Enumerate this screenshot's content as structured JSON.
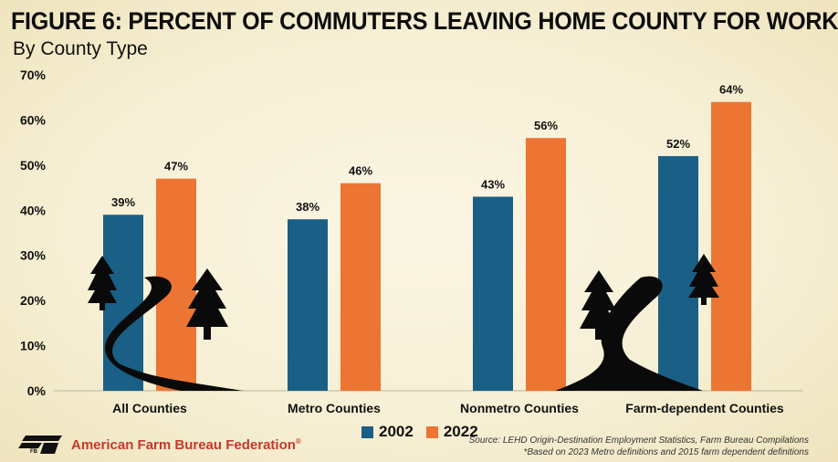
{
  "header": {
    "title": "FIGURE 6: PERCENT OF COMMUTERS LEAVING HOME COUNTY FOR WORK",
    "subtitle": "By County Type"
  },
  "chart_data": {
    "type": "bar",
    "categories": [
      "All Counties",
      "Metro Counties",
      "Nonmetro Counties",
      "Farm-dependent Counties"
    ],
    "series": [
      {
        "name": "2002",
        "color": "#1a5f85",
        "values": [
          39,
          38,
          43,
          52
        ],
        "labels": [
          "39%",
          "38%",
          "43%",
          "52%"
        ]
      },
      {
        "name": "2022",
        "color": "#ec7533",
        "values": [
          47,
          46,
          56,
          64
        ],
        "labels": [
          "47%",
          "46%",
          "56%",
          "64%"
        ]
      }
    ],
    "ylim": [
      0,
      70
    ],
    "yticks": [
      "0%",
      "10%",
      "20%",
      "30%",
      "40%",
      "50%",
      "60%",
      "70%"
    ],
    "grid": false,
    "legend_position": "bottom-center"
  },
  "footer": {
    "brand": "American Farm Bureau Federation",
    "brand_mark": "FB",
    "brand_trademark": "®",
    "source_line1": "Source: LEHD Origin-Destination Employment Statistics, Farm Bureau Compilations",
    "source_line2": "*Based on 2023 Metro definitions and 2015 farm dependent definitions"
  },
  "decorations": [
    "tree-icon",
    "road-icon"
  ]
}
